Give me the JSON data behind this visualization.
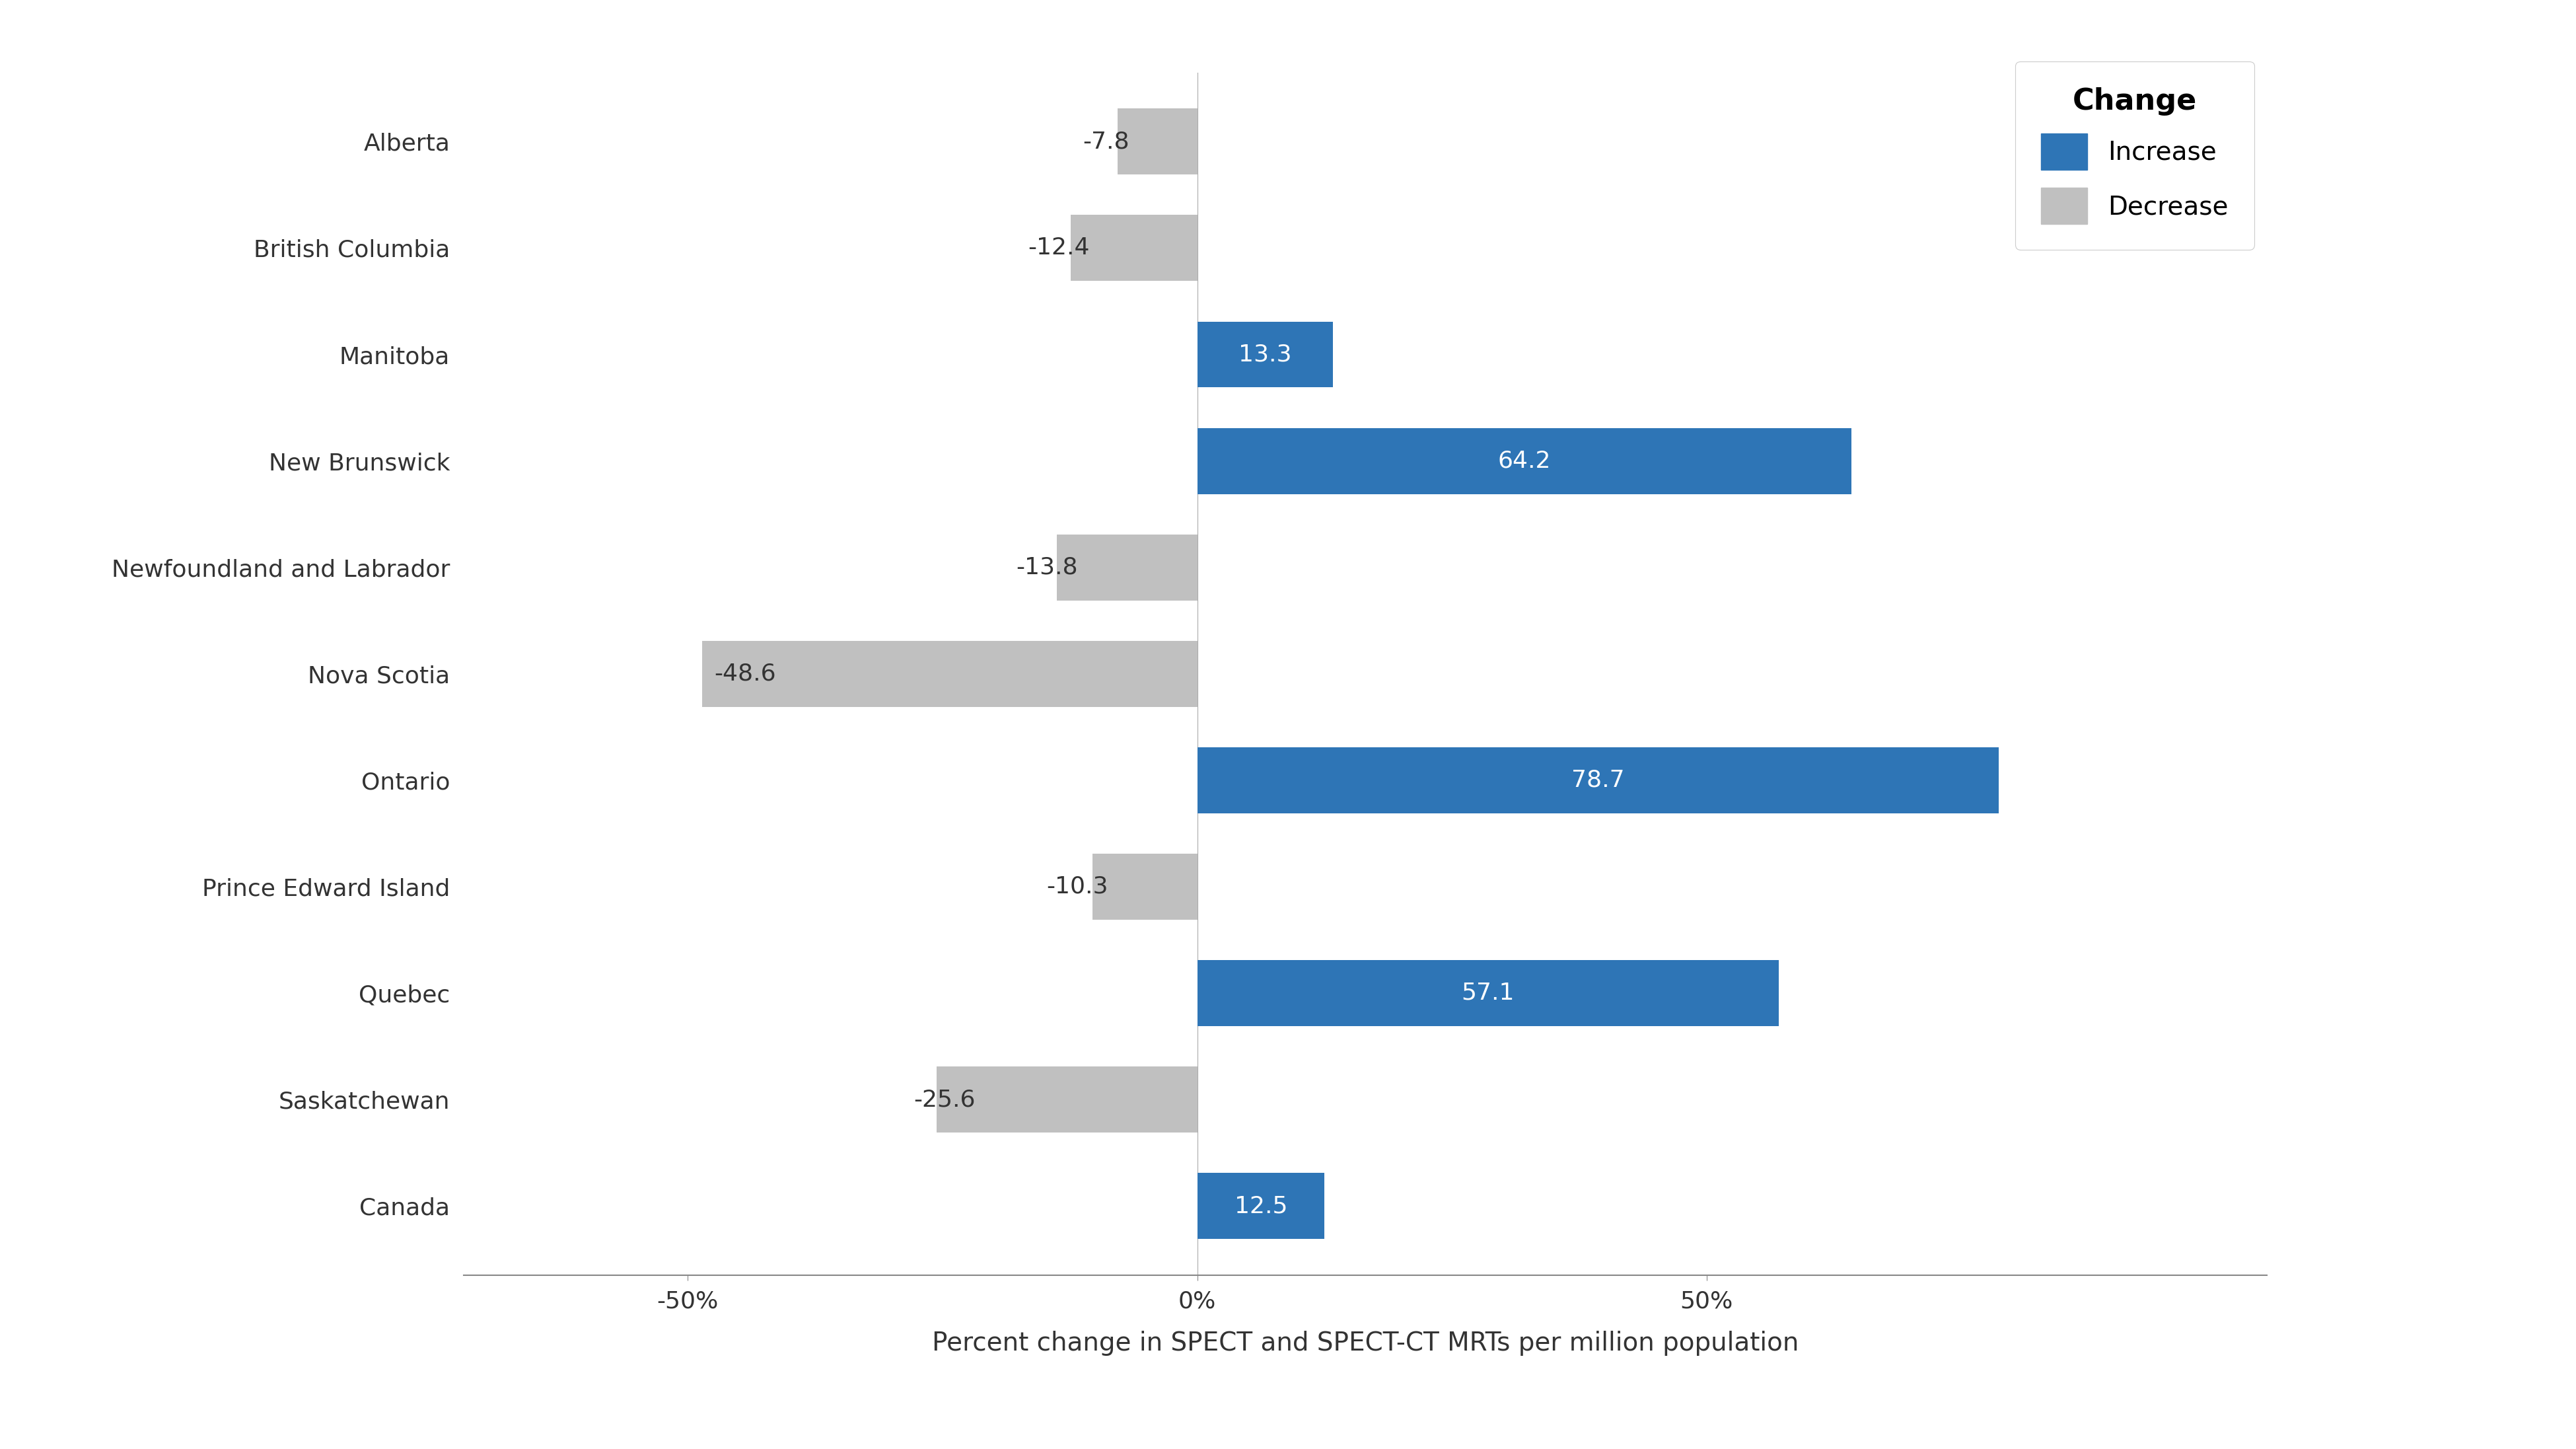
{
  "categories": [
    "Alberta",
    "British Columbia",
    "Manitoba",
    "New Brunswick",
    "Newfoundland and Labrador",
    "Nova Scotia",
    "Ontario",
    "Prince Edward Island",
    "Quebec",
    "Saskatchewan",
    "Canada"
  ],
  "values": [
    -7.8,
    -12.4,
    13.3,
    64.2,
    -13.8,
    -48.6,
    78.7,
    -10.3,
    57.1,
    -25.6,
    12.5
  ],
  "increase_color": "#2E75B6",
  "decrease_color": "#C0C0C0",
  "xlabel": "Percent change in SPECT and SPECT-CT MRTs per million population",
  "legend_title": "Change",
  "legend_increase": "Increase",
  "legend_decrease": "Decrease",
  "xlim": [
    -72,
    105
  ],
  "xticks": [
    -50,
    0,
    50
  ],
  "xticklabels": [
    "-50%",
    "0%",
    "50%"
  ],
  "background_color": "#ffffff",
  "bar_height": 0.62,
  "label_fontsize": 28,
  "tick_fontsize": 26,
  "legend_fontsize": 28,
  "legend_title_fontsize": 32,
  "value_fontsize": 26,
  "ylabel_fontsize": 28
}
